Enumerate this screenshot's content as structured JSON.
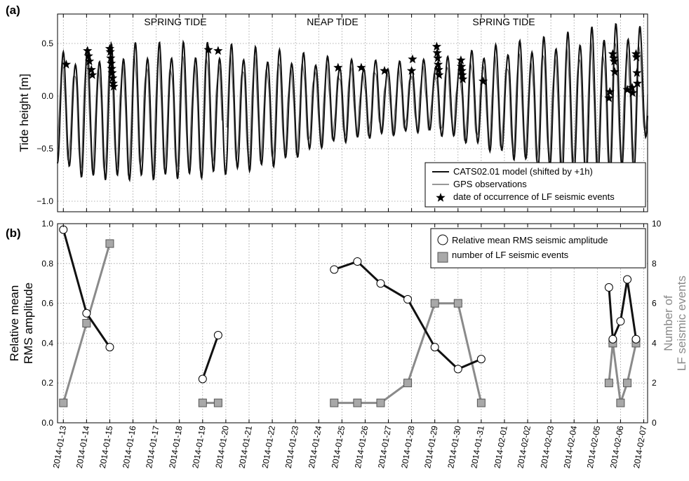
{
  "chart_data": [
    {
      "type": "line",
      "panel_label": "(a)",
      "ylabel": "Tide height [m]",
      "ylim": [
        -1.1,
        0.78
      ],
      "yticks": [
        -1.0,
        -0.5,
        0.0,
        0.5
      ],
      "ytick_labels": [
        "−1.0",
        "−0.5",
        "0.0",
        "0.5"
      ],
      "xlim": [
        "2014-01-12T18:00",
        "2014-02-07T04:00"
      ],
      "grid": true,
      "annotations": [
        "SPRING TIDE",
        "NEAP TIDE",
        "SPRING TIDE"
      ],
      "legend": {
        "placement": "lower-right",
        "entries": [
          "CATS02.01 model (shifted by +1h)",
          "GPS observations",
          "date of occurrence of LF seismic events"
        ]
      },
      "series": [
        {
          "name": "CATS02.01 model (shifted by +1h)",
          "color": "#111111",
          "style": "solid thick",
          "description": "semi-diurnal tide, spring amplitude ~0.55-0.75 m, neap ~0.3 m"
        },
        {
          "name": "GPS observations",
          "color": "#777777",
          "style": "solid thin, gaps"
        },
        {
          "name": "date of occurrence of LF seismic events",
          "color": "#000000",
          "marker": "star",
          "points": [
            [
              "2014-01-13T03:00",
              0.3
            ],
            [
              "2014-01-14T01:00",
              0.43
            ],
            [
              "2014-01-14T02:00",
              0.38
            ],
            [
              "2014-01-14T03:00",
              0.33
            ],
            [
              "2014-01-14T05:00",
              0.25
            ],
            [
              "2014-01-14T06:00",
              0.2
            ],
            [
              "2014-01-15T00:00",
              0.45
            ],
            [
              "2014-01-15T00:30",
              0.42
            ],
            [
              "2014-01-15T01:00",
              0.36
            ],
            [
              "2014-01-15T01:30",
              0.31
            ],
            [
              "2014-01-15T02:00",
              0.26
            ],
            [
              "2014-01-15T02:30",
              0.22
            ],
            [
              "2014-01-15T03:00",
              0.17
            ],
            [
              "2014-01-15T03:30",
              0.12
            ],
            [
              "2014-01-15T04:00",
              0.09
            ],
            [
              "2014-01-19T06:00",
              0.44
            ],
            [
              "2014-01-19T16:00",
              0.43
            ],
            [
              "2014-01-24T20:00",
              0.27
            ],
            [
              "2014-01-25T20:00",
              0.27
            ],
            [
              "2014-01-26T20:00",
              0.24
            ],
            [
              "2014-01-28T01:00",
              0.35
            ],
            [
              "2014-01-28T00:00",
              0.24
            ],
            [
              "2014-01-29T02:00",
              0.47
            ],
            [
              "2014-01-29T02:30",
              0.41
            ],
            [
              "2014-01-29T03:00",
              0.36
            ],
            [
              "2014-01-29T03:30",
              0.3
            ],
            [
              "2014-01-29T04:00",
              0.25
            ],
            [
              "2014-01-29T04:30",
              0.2
            ],
            [
              "2014-01-30T03:00",
              0.34
            ],
            [
              "2014-01-30T03:30",
              0.28
            ],
            [
              "2014-01-30T04:00",
              0.24
            ],
            [
              "2014-01-30T04:30",
              0.2
            ],
            [
              "2014-01-30T05:00",
              0.16
            ],
            [
              "2014-01-31T02:00",
              0.14
            ],
            [
              "2014-02-05T13:00",
              0.04
            ],
            [
              "2014-02-05T12:00",
              -0.02
            ],
            [
              "2014-02-05T16:00",
              0.4
            ],
            [
              "2014-02-05T17:00",
              0.36
            ],
            [
              "2014-02-05T17:30",
              0.33
            ],
            [
              "2014-02-05T18:00",
              0.23
            ],
            [
              "2014-02-06T07:00",
              0.06
            ],
            [
              "2014-02-06T12:00",
              0.08
            ],
            [
              "2014-02-06T12:30",
              0.03
            ],
            [
              "2014-02-06T16:00",
              0.4
            ],
            [
              "2014-02-06T16:30",
              0.37
            ],
            [
              "2014-02-06T17:00",
              0.22
            ],
            [
              "2014-02-06T17:30",
              0.12
            ]
          ]
        }
      ]
    },
    {
      "type": "line",
      "panel_label": "(b)",
      "ylabel_left": [
        "Relative mean",
        "RMS amplitude"
      ],
      "ylabel_right": [
        "Number of",
        "LF seismic events"
      ],
      "ylim_left": [
        0,
        1.0
      ],
      "ylim_right": [
        0,
        10
      ],
      "yticks_left": [
        "0.0",
        "0.2",
        "0.4",
        "0.6",
        "0.8",
        "1.0"
      ],
      "yticks_right": [
        "0",
        "2",
        "4",
        "6",
        "8",
        "10"
      ],
      "xlim": [
        "2014-01-12T18:00",
        "2014-02-07T04:00"
      ],
      "x_tick_labels": [
        "2014-01-13",
        "2014-01-14",
        "2014-01-15",
        "2014-01-16",
        "2014-01-17",
        "2014-01-18",
        "2014-01-19",
        "2014-01-20",
        "2014-01-21",
        "2014-01-22",
        "2014-01-23",
        "2014-01-24",
        "2014-01-25",
        "2014-01-26",
        "2014-01-27",
        "2014-01-28",
        "2014-01-29",
        "2014-01-30",
        "2014-01-31",
        "2014-02-01",
        "2014-02-02",
        "2014-02-03",
        "2014-02-04",
        "2014-02-05",
        "2014-02-06",
        "2014-02-07"
      ],
      "grid": true,
      "legend": {
        "placement": "upper-right",
        "entries": [
          "Relative mean RMS seismic amplitude",
          "number of LF seismic events"
        ]
      },
      "series": [
        {
          "name": "Relative mean RMS seismic amplitude",
          "axis": "left",
          "color": "#000000",
          "marker": "circle",
          "segments": [
            [
              [
                "2014-01-13T00:00",
                0.97
              ],
              [
                "2014-01-14T00:00",
                0.55
              ],
              [
                "2014-01-15T00:00",
                0.38
              ]
            ],
            [
              [
                "2014-01-19T00:00",
                0.22
              ],
              [
                "2014-01-19T16:00",
                0.44
              ]
            ],
            [
              [
                "2014-01-24T16:00",
                0.77
              ],
              [
                "2014-01-25T16:00",
                0.81
              ],
              [
                "2014-01-26T16:00",
                0.7
              ],
              [
                "2014-01-27T20:00",
                0.62
              ],
              [
                "2014-01-29T00:00",
                0.38
              ],
              [
                "2014-01-30T00:00",
                0.27
              ],
              [
                "2014-01-31T00:00",
                0.32
              ]
            ],
            [
              [
                "2014-02-05T12:00",
                0.68
              ],
              [
                "2014-02-05T16:00",
                0.42
              ],
              [
                "2014-02-06T00:00",
                0.51
              ],
              [
                "2014-02-06T07:00",
                0.72
              ],
              [
                "2014-02-06T16:00",
                0.42
              ]
            ]
          ]
        },
        {
          "name": "number of LF seismic events",
          "axis": "right",
          "color": "#888888",
          "marker": "square",
          "segments": [
            [
              [
                "2014-01-13T00:00",
                1
              ],
              [
                "2014-01-14T00:00",
                5
              ],
              [
                "2014-01-15T00:00",
                9
              ]
            ],
            [
              [
                "2014-01-19T00:00",
                1
              ],
              [
                "2014-01-19T16:00",
                1
              ]
            ],
            [
              [
                "2014-01-24T16:00",
                1
              ],
              [
                "2014-01-25T16:00",
                1
              ],
              [
                "2014-01-26T16:00",
                1
              ],
              [
                "2014-01-27T20:00",
                2
              ],
              [
                "2014-01-29T00:00",
                6
              ],
              [
                "2014-01-30T00:00",
                6
              ],
              [
                "2014-01-31T00:00",
                1
              ]
            ],
            [
              [
                "2014-02-05T12:00",
                2
              ],
              [
                "2014-02-05T16:00",
                4
              ],
              [
                "2014-02-06T00:00",
                1
              ],
              [
                "2014-02-06T07:00",
                2
              ],
              [
                "2014-02-06T16:00",
                4
              ]
            ]
          ]
        }
      ]
    }
  ]
}
